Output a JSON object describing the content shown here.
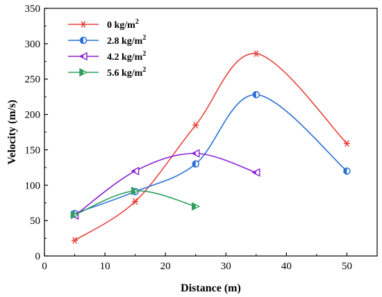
{
  "chart_data": {
    "type": "line",
    "xlabel": "Distance (m)",
    "ylabel": "Velocity (m/s)",
    "xlim": [
      0,
      55
    ],
    "ylim": [
      0,
      350
    ],
    "xticks": [
      0,
      10,
      20,
      30,
      40,
      50
    ],
    "yticks": [
      0,
      50,
      100,
      150,
      200,
      250,
      300,
      350
    ],
    "legend_position": "top-left",
    "grid": false,
    "series": [
      {
        "name_main": "0 kg/m",
        "name_sup": "2",
        "color": "#e8413c",
        "marker": "star",
        "x": [
          5,
          15,
          25,
          35,
          50
        ],
        "y": [
          22,
          77,
          185,
          286,
          159
        ]
      },
      {
        "name_main": "2.8 kg/m",
        "name_sup": "2",
        "color": "#2a6fd6",
        "marker": "half-circle",
        "x": [
          5,
          15,
          25,
          35,
          50
        ],
        "y": [
          60,
          91,
          130,
          228,
          120
        ]
      },
      {
        "name_main": "4.2 kg/m",
        "name_sup": "2",
        "color": "#8a1fd1",
        "marker": "left-triangle",
        "x": [
          5,
          15,
          25,
          35
        ],
        "y": [
          57,
          120,
          145,
          118
        ]
      },
      {
        "name_main": "5.6 kg/m",
        "name_sup": "2",
        "color": "#2e9e5e",
        "marker": "right-triangle",
        "x": [
          5,
          15,
          25
        ],
        "y": [
          58,
          92,
          70
        ]
      }
    ]
  }
}
